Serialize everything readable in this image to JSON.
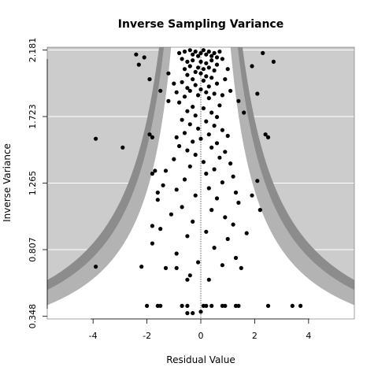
{
  "chart_data": {
    "type": "scatter",
    "title": "Inverse Sampling Variance",
    "xlabel": "Residual Value",
    "ylabel": "Inverse Variance",
    "xlim": [
      -5.7,
      5.7
    ],
    "ylim": [
      0.33,
      2.2
    ],
    "x_ticks": [
      -4,
      -2,
      0,
      2,
      4
    ],
    "x_tick_labels": [
      "-4",
      "-2",
      "0",
      "2",
      "4"
    ],
    "y_ticks": [
      0.348,
      0.807,
      1.265,
      1.723,
      2.181
    ],
    "y_tick_labels": [
      "0.348",
      "0.807",
      "1.265",
      "1.723",
      "2.181"
    ],
    "grid": true,
    "reference_line_x": 0,
    "regions": {
      "inner_critical": 1.96,
      "outer_critical": 2.58,
      "colors": {
        "background": "#cccccc",
        "outer_band": "#8c8c8c",
        "middle_band": "#b3b3b3",
        "inner_region": "#ffffff",
        "points": "#000000"
      }
    },
    "points": [
      [
        -0.8,
        2.16
      ],
      [
        -0.6,
        2.17
      ],
      [
        -0.4,
        2.18
      ],
      [
        -0.3,
        2.15
      ],
      [
        -0.2,
        2.17
      ],
      [
        -0.1,
        2.14
      ],
      [
        0.0,
        2.16
      ],
      [
        0.1,
        2.18
      ],
      [
        0.2,
        2.15
      ],
      [
        0.3,
        2.17
      ],
      [
        0.4,
        2.14
      ],
      [
        0.5,
        2.16
      ],
      [
        0.6,
        2.13
      ],
      [
        0.7,
        2.17
      ],
      [
        0.8,
        2.12
      ],
      [
        -0.7,
        2.12
      ],
      [
        -0.5,
        2.1
      ],
      [
        -0.3,
        2.11
      ],
      [
        0.0,
        2.1
      ],
      [
        0.2,
        2.09
      ],
      [
        0.4,
        2.11
      ],
      [
        0.6,
        2.08
      ],
      [
        -0.4,
        2.07
      ],
      [
        -0.1,
        2.06
      ],
      [
        0.1,
        2.05
      ],
      [
        0.3,
        2.06
      ],
      [
        -0.6,
        2.05
      ],
      [
        0.5,
        2.04
      ],
      [
        -0.2,
        2.03
      ],
      [
        0.0,
        2.02
      ],
      [
        -0.5,
        2.01
      ],
      [
        0.2,
        2.0
      ],
      [
        0.4,
        1.99
      ],
      [
        -0.3,
        1.98
      ],
      [
        0.1,
        1.97
      ],
      [
        -0.7,
        1.96
      ],
      [
        0.6,
        1.95
      ],
      [
        -0.2,
        1.94
      ],
      [
        0.3,
        1.93
      ],
      [
        -0.5,
        1.92
      ],
      [
        0.0,
        1.91
      ],
      [
        -0.4,
        1.9
      ],
      [
        0.2,
        1.89
      ],
      [
        0.5,
        1.88
      ],
      [
        -0.1,
        1.87
      ],
      [
        -0.6,
        1.86
      ],
      [
        0.3,
        1.85
      ],
      [
        0.8,
        1.87
      ],
      [
        -0.9,
        1.89
      ],
      [
        0.9,
        1.98
      ],
      [
        -1.0,
        1.95
      ],
      [
        1.0,
        2.05
      ],
      [
        -1.2,
        2.02
      ],
      [
        1.1,
        1.9
      ],
      [
        -0.8,
        1.82
      ],
      [
        0.7,
        1.8
      ],
      [
        -0.3,
        1.79
      ],
      [
        0.1,
        1.78
      ],
      [
        -0.5,
        1.76
      ],
      [
        0.4,
        1.75
      ],
      [
        -0.2,
        1.73
      ],
      [
        0.6,
        1.72
      ],
      [
        -0.7,
        1.7
      ],
      [
        0.2,
        1.69
      ],
      [
        -0.4,
        1.67
      ],
      [
        0.5,
        1.66
      ],
      [
        -0.1,
        1.64
      ],
      [
        0.8,
        1.63
      ],
      [
        -0.6,
        1.61
      ],
      [
        0.3,
        1.6
      ],
      [
        -0.9,
        1.58
      ],
      [
        0.0,
        1.57
      ],
      [
        1.0,
        1.59
      ],
      [
        -0.3,
        1.55
      ],
      [
        0.6,
        1.54
      ],
      [
        -0.8,
        1.52
      ],
      [
        0.4,
        1.51
      ],
      [
        -0.5,
        1.49
      ],
      [
        0.9,
        1.48
      ],
      [
        -0.2,
        1.46
      ],
      [
        0.7,
        1.44
      ],
      [
        -1.0,
        1.43
      ],
      [
        0.1,
        1.41
      ],
      [
        1.1,
        1.4
      ],
      [
        -0.4,
        1.38
      ],
      [
        0.5,
        1.36
      ],
      [
        -1.3,
        1.35
      ],
      [
        0.2,
        1.33
      ],
      [
        1.2,
        1.31
      ],
      [
        -0.6,
        1.29
      ],
      [
        0.8,
        1.27
      ],
      [
        -1.4,
        1.25
      ],
      [
        0.3,
        1.23
      ],
      [
        -0.9,
        1.22
      ],
      [
        1.3,
        1.2
      ],
      [
        -0.2,
        1.18
      ],
      [
        0.6,
        1.16
      ],
      [
        -1.6,
        1.15
      ],
      [
        1.4,
        1.13
      ],
      [
        -0.7,
        1.1
      ],
      [
        0.4,
        1.08
      ],
      [
        -1.1,
        1.05
      ],
      [
        0.9,
        1.03
      ],
      [
        -0.3,
        1.0
      ],
      [
        1.2,
        0.98
      ],
      [
        -1.5,
        0.95
      ],
      [
        0.2,
        0.93
      ],
      [
        -0.5,
        0.9
      ],
      [
        1.0,
        0.88
      ],
      [
        -1.8,
        0.85
      ],
      [
        0.5,
        0.82
      ],
      [
        -0.9,
        0.78
      ],
      [
        1.3,
        0.75
      ],
      [
        -0.1,
        0.72
      ],
      [
        0.8,
        0.7
      ],
      [
        -1.3,
        0.68
      ],
      [
        -0.4,
        0.63
      ],
      [
        0.3,
        0.6
      ],
      [
        -2.1,
        2.13
      ],
      [
        -2.4,
        2.15
      ],
      [
        -2.3,
        2.08
      ],
      [
        -1.9,
        1.98
      ],
      [
        -1.5,
        1.9
      ],
      [
        -1.2,
        1.83
      ],
      [
        2.3,
        2.16
      ],
      [
        1.9,
        2.07
      ],
      [
        2.7,
        2.1
      ],
      [
        2.1,
        1.88
      ],
      [
        1.4,
        1.83
      ],
      [
        1.6,
        1.75
      ],
      [
        -1.9,
        1.6
      ],
      [
        -1.8,
        1.58
      ],
      [
        2.4,
        1.6
      ],
      [
        2.5,
        1.58
      ],
      [
        -2.9,
        1.51
      ],
      [
        -3.9,
        1.57
      ],
      [
        -1.7,
        1.35
      ],
      [
        -1.8,
        1.33
      ],
      [
        2.1,
        1.28
      ],
      [
        -1.6,
        1.2
      ],
      [
        1.9,
        1.18
      ],
      [
        2.2,
        1.08
      ],
      [
        -1.8,
        0.97
      ],
      [
        1.7,
        0.92
      ],
      [
        -3.9,
        0.69
      ],
      [
        -2.2,
        0.69
      ],
      [
        1.5,
        0.68
      ],
      [
        -0.9,
        0.68
      ],
      [
        -0.5,
        0.6
      ],
      [
        -2.0,
        0.42
      ],
      [
        -1.6,
        0.42
      ],
      [
        -1.5,
        0.42
      ],
      [
        -0.7,
        0.42
      ],
      [
        -0.5,
        0.42
      ],
      [
        0.1,
        0.42
      ],
      [
        0.2,
        0.42
      ],
      [
        0.4,
        0.42
      ],
      [
        0.8,
        0.42
      ],
      [
        0.9,
        0.42
      ],
      [
        1.3,
        0.42
      ],
      [
        1.4,
        0.42
      ],
      [
        2.5,
        0.42
      ],
      [
        3.4,
        0.42
      ],
      [
        3.7,
        0.42
      ],
      [
        -0.5,
        0.37
      ],
      [
        -0.3,
        0.37
      ],
      [
        0.0,
        0.38
      ]
    ]
  }
}
